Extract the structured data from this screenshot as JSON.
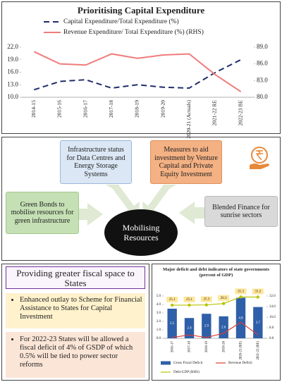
{
  "chart_data": [
    {
      "type": "line",
      "title": "Prioritising Capital Expenditure",
      "categories": [
        "2014-15",
        "2015-16",
        "2016-17",
        "2017-18",
        "2018-19",
        "2019-20",
        "2020-21 (Actuals)",
        "2021-22 RE",
        "2022-23 BE"
      ],
      "series": [
        {
          "name": "Capital Expenditure/Total Expenditure (%)",
          "color": "#1f2d6b",
          "dash": true,
          "values": [
            11.8,
            13.8,
            14.2,
            12.2,
            13.0,
            12.4,
            12.2,
            15.9,
            19.0
          ]
        },
        {
          "name": "Revenue Expenditure/ Total Expenditure (%) (RHS)",
          "color": "#f07c7c",
          "axis": "y2",
          "values": [
            88.2,
            86.0,
            85.8,
            87.8,
            87.0,
            87.6,
            87.8,
            84.1,
            81.0
          ]
        }
      ],
      "ylim": [
        10,
        22
      ],
      "yticks": [
        {
          "value": 10,
          "label": "10.0"
        },
        {
          "value": 13,
          "label": "13.0"
        },
        {
          "value": 16,
          "label": "16.0"
        },
        {
          "value": 19,
          "label": "19.0"
        },
        {
          "value": 22,
          "label": "22.0"
        }
      ],
      "y2lim": [
        80,
        89
      ],
      "y2ticks": [
        {
          "value": 80,
          "label": "80.0"
        },
        {
          "value": 83,
          "label": "83.0"
        },
        {
          "value": 86,
          "label": "86.0"
        },
        {
          "value": 89,
          "label": "89.0"
        }
      ],
      "grid": false
    },
    {
      "type": "bar",
      "title": "Major deficit and debt indicators of state governments (percent of GDP)",
      "categories": [
        "2016-17",
        "2017-18",
        "2018-19",
        "2019-20",
        "2020-21 (RE)",
        "2021-22 (BE)"
      ],
      "series": [
        {
          "name": "Gross Fiscal Deficit",
          "type": "bar",
          "color": "#2f5fa8",
          "show_labels": true,
          "values": [
            3.5,
            2.4,
            2.9,
            2.6,
            4.8,
            3.7
          ]
        },
        {
          "name": "Revenue Deficit",
          "type": "line",
          "color": "#e03c31",
          "values": [
            0.1,
            0.4,
            0.1,
            0.6,
            1.9,
            0.4
          ]
        },
        {
          "name": "Debt-GDP (RHS)",
          "type": "line",
          "color": "#b8c400",
          "axis": "y2",
          "marker": true,
          "show_labels": true,
          "values": [
            25.1,
            25.1,
            25.3,
            26.3,
            31.3,
            31.2
          ]
        }
      ],
      "ylim": [
        0,
        5
      ],
      "yticks": [
        {
          "value": 0,
          "label": "0.0"
        },
        {
          "value": 1,
          "label": "1.0"
        },
        {
          "value": 2,
          "label": "2.0"
        },
        {
          "value": 3,
          "label": "3.0"
        },
        {
          "value": 4,
          "label": "4.0"
        },
        {
          "value": 5,
          "label": "5.0"
        }
      ],
      "y2lim": [
        0,
        32
      ],
      "y2ticks": [
        {
          "value": 0,
          "label": "0.0"
        },
        {
          "value": 8,
          "label": "8.0"
        },
        {
          "value": 16,
          "label": "16.0"
        },
        {
          "value": 24,
          "label": "24.0"
        },
        {
          "value": 32,
          "label": "32.0"
        }
      ],
      "grid": false
    }
  ],
  "diagram": {
    "center": "Mobilising Resources",
    "nodes": [
      {
        "label": "Infrastructure status for Data Centres and Energy Storage Systems"
      },
      {
        "label": "Measures to aid investment by Venture Capital and Private Equity Investment"
      },
      {
        "label": "Green Bonds to mobilise resources for green infrastructure"
      },
      {
        "label": "Blended Finance for sunrise sectors"
      }
    ]
  },
  "states": {
    "heading": "Providing greater fiscal space to States",
    "bullets": [
      "Enhanced outlay to Scheme for Financial Assistance to States for Capital Investment",
      "For 2022-23 States will be allowed a fiscal deficit of 4% of GSDP of which 0.5% will be tied to power sector reforms"
    ]
  }
}
